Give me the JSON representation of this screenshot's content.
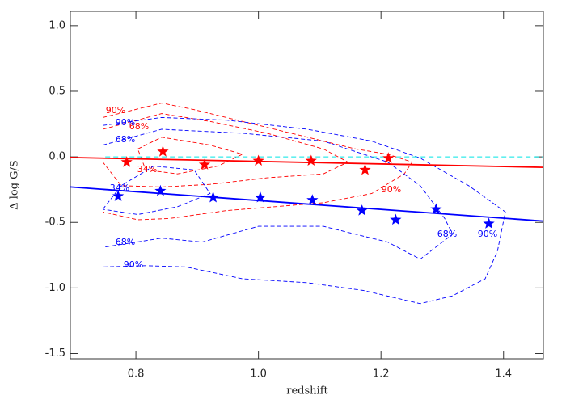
{
  "chart_data": {
    "type": "scatter",
    "xlabel": "redshift",
    "ylabel": "Δ log G/S",
    "xlim": [
      0.693,
      1.465
    ],
    "ylim": [
      -1.54,
      1.11
    ],
    "xticks": [
      0.8,
      {
        "value": 1,
        "label": "1.0"
      },
      1.2,
      1.4
    ],
    "yticks": [
      -1.5,
      {
        "value": -1,
        "label": "-1.0"
      },
      -0.5,
      {
        "value": 0,
        "label": "0.0"
      },
      0.5,
      {
        "value": 1,
        "label": "1.0"
      }
    ],
    "series": [
      {
        "color": "#ff0000",
        "x": [
          0.785,
          0.844,
          0.912,
          1.0,
          1.086,
          1.174,
          1.212
        ],
        "y": [
          -0.04,
          0.04,
          -0.06,
          -0.03,
          -0.03,
          -0.1,
          -0.01
        ]
      },
      {
        "color": "#0000ff",
        "x": [
          0.771,
          0.84,
          0.926,
          1.003,
          1.088,
          1.169,
          1.224,
          1.29,
          1.376
        ],
        "y": [
          -0.3,
          -0.26,
          -0.31,
          -0.31,
          -0.33,
          -0.41,
          -0.48,
          -0.4,
          -0.51
        ]
      }
    ],
    "lines": [
      {
        "color": "#ff0000",
        "dash": false,
        "x": [
          0.693,
          1.465
        ],
        "y": [
          -0.005,
          -0.08
        ]
      },
      {
        "color": "#0000ff",
        "dash": false,
        "x": [
          0.693,
          1.465
        ],
        "y": [
          -0.23,
          -0.49
        ]
      },
      {
        "color": "#00e5e5",
        "dash": true,
        "x": [
          0.75,
          1.465
        ],
        "y": [
          0,
          0
        ]
      }
    ],
    "contours": [
      {
        "label": "90%",
        "color": "#ff0000",
        "x": [
          0.746,
          0.842,
          0.895,
          0.974,
          1.08,
          1.159,
          1.211,
          1.251,
          1.238,
          1.185,
          1.106,
          1.027,
          0.948,
          0.855,
          0.803,
          0.746
        ],
        "y": [
          0.3,
          0.41,
          0.36,
          0.27,
          0.15,
          0.06,
          0.02,
          -0.04,
          -0.13,
          -0.28,
          -0.35,
          -0.38,
          -0.41,
          -0.47,
          -0.48,
          -0.42
        ]
      },
      {
        "label": "68%",
        "color": "#ff0000",
        "x": [
          0.746,
          0.842,
          0.921,
          1.014,
          1.106,
          1.146,
          1.106,
          1.014,
          0.921,
          0.842,
          0.776,
          0.746
        ],
        "y": [
          0.21,
          0.33,
          0.27,
          0.18,
          0.06,
          -0.04,
          -0.13,
          -0.16,
          -0.21,
          -0.23,
          -0.22,
          -0.04
        ]
      },
      {
        "label": "34%",
        "color": "#ff0000",
        "x": [
          0.803,
          0.842,
          0.921,
          0.974,
          0.934,
          0.868,
          0.816,
          0.803
        ],
        "y": [
          0.06,
          0.15,
          0.09,
          0.02,
          -0.07,
          -0.13,
          -0.1,
          0.06
        ]
      },
      {
        "label": "90%",
        "color": "#0000ff",
        "x": [
          0.746,
          0.842,
          0.948,
          1.08,
          1.185,
          1.264,
          1.343,
          1.403,
          1.39,
          1.37,
          1.317,
          1.264,
          1.172,
          1.08,
          0.974,
          0.882,
          0.816,
          0.746
        ],
        "y": [
          0.24,
          0.3,
          0.28,
          0.21,
          0.12,
          -0.01,
          -0.22,
          -0.42,
          -0.72,
          -0.93,
          -1.06,
          -1.12,
          -1.02,
          -0.96,
          -0.93,
          -0.84,
          -0.83,
          -0.84
        ]
      },
      {
        "label": "68%",
        "color": "#0000ff",
        "x": [
          0.746,
          0.842,
          0.974,
          1.106,
          1.211,
          1.264,
          1.304,
          1.317,
          1.264,
          1.211,
          1.106,
          1.0,
          0.908,
          0.842,
          0.746
        ],
        "y": [
          0.09,
          0.21,
          0.18,
          0.12,
          -0.04,
          -0.22,
          -0.47,
          -0.59,
          -0.78,
          -0.65,
          -0.53,
          -0.53,
          -0.65,
          -0.62,
          -0.69
        ]
      },
      {
        "label": "34%",
        "color": "#0000ff",
        "x": [
          0.746,
          0.776,
          0.829,
          0.895,
          0.921,
          0.868,
          0.803,
          0.746
        ],
        "y": [
          -0.4,
          -0.22,
          -0.07,
          -0.1,
          -0.28,
          -0.38,
          -0.44,
          -0.4
        ]
      }
    ]
  }
}
